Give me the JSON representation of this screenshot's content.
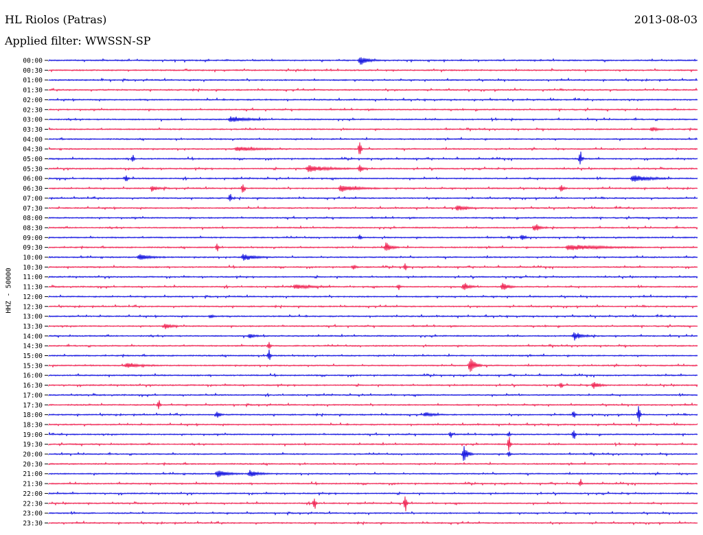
{
  "header": {
    "station": "HL Riolos (Patras)",
    "date": "2013-08-03",
    "filter_text": "Applied filter: WWSSN-SP"
  },
  "chart_data": {
    "type": "line",
    "subtype": "helicorder",
    "ylabel": "HHZ - 50000",
    "row_labels": [
      "00:00",
      "00:30",
      "01:00",
      "01:30",
      "02:00",
      "02:30",
      "03:00",
      "03:30",
      "04:00",
      "04:30",
      "05:00",
      "05:30",
      "06:00",
      "06:30",
      "07:00",
      "07:30",
      "08:00",
      "08:30",
      "09:00",
      "09:30",
      "10:00",
      "10:30",
      "11:00",
      "11:30",
      "12:00",
      "12:30",
      "13:00",
      "13:30",
      "14:00",
      "14:30",
      "15:00",
      "15:30",
      "16:00",
      "16:30",
      "17:00",
      "17:30",
      "18:00",
      "18:30",
      "19:00",
      "19:30",
      "20:00",
      "20:30",
      "21:00",
      "21:30",
      "22:00",
      "22:30",
      "23:00",
      "23:30"
    ],
    "colors": {
      "even_rows": "#0000dd",
      "odd_rows": "#ee1144"
    },
    "events": [
      {
        "row": 0,
        "x": 0.48,
        "amp": 6,
        "len": 0.03
      },
      {
        "row": 6,
        "x": 0.28,
        "amp": 4,
        "len": 0.06
      },
      {
        "row": 7,
        "x": 0.93,
        "amp": 3,
        "len": 0.02
      },
      {
        "row": 9,
        "x": 0.48,
        "amp": 14,
        "len": 0.004
      },
      {
        "row": 9,
        "x": 0.29,
        "amp": 3,
        "len": 0.08
      },
      {
        "row": 10,
        "x": 0.82,
        "amp": 12,
        "len": 0.004
      },
      {
        "row": 10,
        "x": 0.13,
        "amp": 7,
        "len": 0.004
      },
      {
        "row": 11,
        "x": 0.4,
        "amp": 5,
        "len": 0.07
      },
      {
        "row": 11,
        "x": 0.48,
        "amp": 6,
        "len": 0.01
      },
      {
        "row": 12,
        "x": 0.9,
        "amp": 5,
        "len": 0.06
      },
      {
        "row": 12,
        "x": 0.12,
        "amp": 7,
        "len": 0.004
      },
      {
        "row": 13,
        "x": 0.45,
        "amp": 5,
        "len": 0.06
      },
      {
        "row": 13,
        "x": 0.3,
        "amp": 9,
        "len": 0.004
      },
      {
        "row": 13,
        "x": 0.16,
        "amp": 4,
        "len": 0.02
      },
      {
        "row": 13,
        "x": 0.79,
        "amp": 5,
        "len": 0.01
      },
      {
        "row": 14,
        "x": 0.28,
        "amp": 8,
        "len": 0.004
      },
      {
        "row": 15,
        "x": 0.63,
        "amp": 4,
        "len": 0.03
      },
      {
        "row": 17,
        "x": 0.75,
        "amp": 5,
        "len": 0.02
      },
      {
        "row": 18,
        "x": 0.48,
        "amp": 5,
        "len": 0.004
      },
      {
        "row": 18,
        "x": 0.73,
        "amp": 4,
        "len": 0.01
      },
      {
        "row": 19,
        "x": 0.52,
        "amp": 7,
        "len": 0.02
      },
      {
        "row": 19,
        "x": 0.8,
        "amp": 4,
        "len": 0.12
      },
      {
        "row": 19,
        "x": 0.26,
        "amp": 6,
        "len": 0.004
      },
      {
        "row": 20,
        "x": 0.14,
        "amp": 4,
        "len": 0.04
      },
      {
        "row": 20,
        "x": 0.3,
        "amp": 5,
        "len": 0.04
      },
      {
        "row": 21,
        "x": 0.55,
        "amp": 6,
        "len": 0.004
      },
      {
        "row": 21,
        "x": 0.47,
        "amp": 3,
        "len": 0.01
      },
      {
        "row": 23,
        "x": 0.64,
        "amp": 5,
        "len": 0.02
      },
      {
        "row": 23,
        "x": 0.7,
        "amp": 6,
        "len": 0.02
      },
      {
        "row": 23,
        "x": 0.54,
        "amp": 5,
        "len": 0.004
      },
      {
        "row": 23,
        "x": 0.38,
        "amp": 3,
        "len": 0.06
      },
      {
        "row": 26,
        "x": 0.25,
        "amp": 3,
        "len": 0.01
      },
      {
        "row": 27,
        "x": 0.18,
        "amp": 4,
        "len": 0.02
      },
      {
        "row": 28,
        "x": 0.81,
        "amp": 5,
        "len": 0.03
      },
      {
        "row": 28,
        "x": 0.31,
        "amp": 3,
        "len": 0.02
      },
      {
        "row": 29,
        "x": 0.34,
        "amp": 7,
        "len": 0.004
      },
      {
        "row": 30,
        "x": 0.34,
        "amp": 10,
        "len": 0.004
      },
      {
        "row": 31,
        "x": 0.65,
        "amp": 14,
        "len": 0.018
      },
      {
        "row": 31,
        "x": 0.12,
        "amp": 3,
        "len": 0.05
      },
      {
        "row": 33,
        "x": 0.84,
        "amp": 5,
        "len": 0.02
      },
      {
        "row": 33,
        "x": 0.79,
        "amp": 5,
        "len": 0.004
      },
      {
        "row": 35,
        "x": 0.17,
        "amp": 9,
        "len": 0.004
      },
      {
        "row": 36,
        "x": 0.58,
        "amp": 3,
        "len": 0.03
      },
      {
        "row": 36,
        "x": 0.91,
        "amp": 14,
        "len": 0.004
      },
      {
        "row": 36,
        "x": 0.26,
        "amp": 5,
        "len": 0.01
      },
      {
        "row": 36,
        "x": 0.81,
        "amp": 6,
        "len": 0.004
      },
      {
        "row": 38,
        "x": 0.62,
        "amp": 5,
        "len": 0.004
      },
      {
        "row": 38,
        "x": 0.81,
        "amp": 9,
        "len": 0.004
      },
      {
        "row": 38,
        "x": 0.71,
        "amp": 5,
        "len": 0.004
      },
      {
        "row": 39,
        "x": 0.71,
        "amp": 12,
        "len": 0.004
      },
      {
        "row": 40,
        "x": 0.64,
        "amp": 12,
        "len": 0.015
      },
      {
        "row": 40,
        "x": 0.71,
        "amp": 5,
        "len": 0.004
      },
      {
        "row": 42,
        "x": 0.26,
        "amp": 5,
        "len": 0.04
      },
      {
        "row": 42,
        "x": 0.31,
        "amp": 5,
        "len": 0.03
      },
      {
        "row": 43,
        "x": 0.82,
        "amp": 5,
        "len": 0.004
      },
      {
        "row": 45,
        "x": 0.41,
        "amp": 12,
        "len": 0.004
      },
      {
        "row": 45,
        "x": 0.55,
        "amp": 14,
        "len": 0.004
      }
    ]
  }
}
